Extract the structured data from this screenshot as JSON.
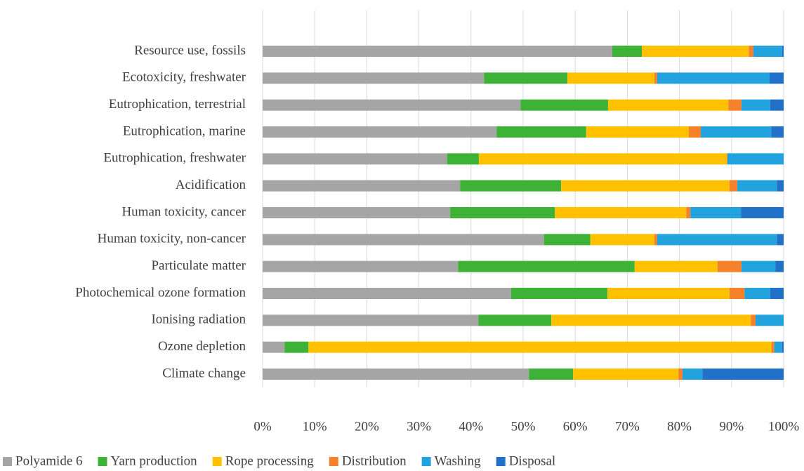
{
  "chart_data": {
    "type": "stacked-barh",
    "categories": [
      "Climate change",
      "Ozone depletion",
      "Ionising radiation",
      "Photochemical ozone formation",
      "Particulate matter",
      "Human toxicity, non-cancer",
      "Human toxicity, cancer",
      "Acidification",
      "Eutrophication, freshwater",
      "Eutrophication, marine",
      "Eutrophication, terrestrial",
      "Ecotoxicity, freshwater",
      "Resource use, fossils"
    ],
    "series": [
      {
        "name": "Polyamide 6",
        "color": "#a5a5a5",
        "values": [
          51.1,
          4.2,
          41.4,
          47.7,
          37.5,
          54.0,
          36.0,
          37.9,
          35.4,
          44.9,
          49.5,
          42.5,
          67.1
        ]
      },
      {
        "name": "Yarn production",
        "color": "#3db236",
        "values": [
          8.5,
          4.6,
          14.0,
          18.5,
          33.9,
          8.9,
          20.1,
          19.4,
          6.1,
          17.2,
          16.8,
          16.0,
          5.7
        ]
      },
      {
        "name": "Rope processing",
        "color": "#ffc000",
        "values": [
          20.2,
          88.9,
          38.3,
          23.4,
          15.9,
          12.3,
          25.2,
          32.3,
          47.6,
          19.7,
          23.1,
          16.7,
          20.5
        ]
      },
      {
        "name": "Distribution",
        "color": "#f5822a",
        "values": [
          0.8,
          0.5,
          0.9,
          2.9,
          4.6,
          0.5,
          0.8,
          1.5,
          0.1,
          2.3,
          2.5,
          0.5,
          0.9
        ]
      },
      {
        "name": "Washing",
        "color": "#22a3de",
        "values": [
          3.8,
          1.5,
          5.4,
          4.9,
          6.5,
          23.0,
          9.7,
          7.6,
          10.8,
          13.5,
          5.5,
          21.6,
          5.5
        ]
      },
      {
        "name": "Disposal",
        "color": "#2171c8",
        "values": [
          15.6,
          0.3,
          0,
          2.6,
          1.6,
          1.3,
          8.2,
          1.3,
          0,
          2.4,
          2.6,
          2.7,
          0.3
        ]
      }
    ],
    "xlim": [
      0,
      100
    ],
    "xticks": [
      {
        "value": 0,
        "label": "0%"
      },
      {
        "value": 10,
        "label": "10%"
      },
      {
        "value": 20,
        "label": "20%"
      },
      {
        "value": 30,
        "label": "30%"
      },
      {
        "value": 40,
        "label": "40%"
      },
      {
        "value": 50,
        "label": "50%"
      },
      {
        "value": 60,
        "label": "60%"
      },
      {
        "value": 70,
        "label": "70%"
      },
      {
        "value": 80,
        "label": "80%"
      },
      {
        "value": 90,
        "label": "90%"
      },
      {
        "value": 100,
        "label": "100%"
      }
    ],
    "grid": true,
    "legend": "bottom"
  }
}
